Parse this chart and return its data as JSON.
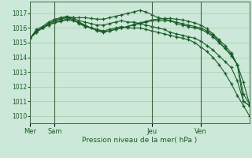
{
  "bg_color": "#cce8d8",
  "grid_color": "#aaccaa",
  "line_color": "#1a5c28",
  "marker_color": "#1a5c28",
  "xlabel_text": "Pression niveau de la mer( hPa )",
  "ylim": [
    1009.5,
    1017.8
  ],
  "yticks": [
    1010,
    1011,
    1012,
    1013,
    1014,
    1015,
    1016,
    1017
  ],
  "xtick_labels": [
    "Mer",
    "Sam",
    "Jeu",
    "Ven"
  ],
  "xtick_positions": [
    0,
    12,
    60,
    84
  ],
  "total_hours": 108,
  "vlines": [
    0,
    12,
    60,
    84
  ],
  "lines": [
    {
      "x": [
        0,
        3,
        6,
        9,
        12,
        15,
        18,
        21,
        24,
        27,
        30,
        33,
        36,
        39,
        42,
        45,
        48,
        51,
        54,
        57,
        60,
        63,
        66,
        69,
        72,
        75,
        78,
        81,
        84,
        87,
        90,
        93,
        96,
        99,
        102,
        105,
        108
      ],
      "y": [
        1015.3,
        1015.8,
        1016.0,
        1016.3,
        1016.5,
        1016.6,
        1016.7,
        1016.6,
        1016.3,
        1016.1,
        1016.0,
        1015.9,
        1015.8,
        1015.9,
        1016.0,
        1016.1,
        1016.0,
        1016.0,
        1016.0,
        1015.9,
        1015.8,
        1015.7,
        1015.6,
        1015.5,
        1015.4,
        1015.3,
        1015.2,
        1015.0,
        1014.7,
        1014.4,
        1014.0,
        1013.5,
        1012.9,
        1012.2,
        1011.4,
        1010.7,
        1010.0
      ]
    },
    {
      "x": [
        0,
        3,
        6,
        9,
        12,
        15,
        18,
        21,
        24,
        27,
        30,
        33,
        36,
        39,
        42,
        45,
        48,
        51,
        54,
        57,
        60,
        63,
        66,
        69,
        72,
        75,
        78,
        81,
        84,
        87,
        90,
        93,
        96,
        99,
        102,
        105,
        108
      ],
      "y": [
        1015.3,
        1015.9,
        1016.1,
        1016.4,
        1016.6,
        1016.7,
        1016.8,
        1016.7,
        1016.5,
        1016.4,
        1016.3,
        1016.2,
        1016.2,
        1016.3,
        1016.4,
        1016.5,
        1016.4,
        1016.4,
        1016.3,
        1016.2,
        1016.1,
        1016.0,
        1015.9,
        1015.7,
        1015.6,
        1015.5,
        1015.4,
        1015.3,
        1015.1,
        1014.8,
        1014.5,
        1014.1,
        1013.7,
        1013.3,
        1012.4,
        1011.0,
        1010.7
      ]
    },
    {
      "x": [
        0,
        3,
        6,
        9,
        12,
        15,
        18,
        21,
        24,
        27,
        30,
        33,
        36,
        39,
        42,
        45,
        48,
        51,
        54,
        57,
        60,
        63,
        66,
        69,
        72,
        75,
        78,
        81,
        84,
        87,
        90,
        93,
        96,
        99,
        102,
        105,
        108
      ],
      "y": [
        1015.3,
        1015.8,
        1016.0,
        1016.3,
        1016.5,
        1016.65,
        1016.7,
        1016.7,
        1016.7,
        1016.7,
        1016.65,
        1016.6,
        1016.6,
        1016.7,
        1016.8,
        1016.9,
        1017.0,
        1017.1,
        1017.2,
        1017.1,
        1016.9,
        1016.7,
        1016.6,
        1016.5,
        1016.3,
        1016.2,
        1016.1,
        1016.0,
        1015.9,
        1015.7,
        1015.4,
        1015.0,
        1014.6,
        1014.2,
        1013.5,
        1012.3,
        1010.8
      ]
    },
    {
      "x": [
        0,
        3,
        6,
        9,
        12,
        15,
        18,
        21,
        24,
        27,
        30,
        33,
        36,
        39,
        42,
        45,
        48,
        51,
        54,
        57,
        60,
        63,
        66,
        69,
        72,
        75,
        78,
        81,
        84,
        87,
        90,
        93,
        96,
        99,
        102,
        105,
        108
      ],
      "y": [
        1015.3,
        1015.7,
        1016.0,
        1016.2,
        1016.4,
        1016.5,
        1016.6,
        1016.55,
        1016.4,
        1016.2,
        1016.0,
        1015.8,
        1015.7,
        1015.8,
        1015.9,
        1016.0,
        1016.1,
        1016.2,
        1016.3,
        1016.4,
        1016.5,
        1016.5,
        1016.5,
        1016.5,
        1016.4,
        1016.3,
        1016.2,
        1016.1,
        1016.0,
        1015.8,
        1015.5,
        1015.1,
        1014.6,
        1014.1,
        1013.5,
        1011.5,
        1010.8
      ]
    },
    {
      "x": [
        0,
        3,
        6,
        9,
        12,
        15,
        18,
        21,
        24,
        27,
        30,
        33,
        36,
        39,
        42,
        45,
        48,
        51,
        54,
        57,
        60,
        63,
        66,
        69,
        72,
        75,
        78,
        81,
        84,
        87,
        90,
        93,
        96,
        99,
        102,
        105,
        108
      ],
      "y": [
        1015.3,
        1015.7,
        1016.0,
        1016.2,
        1016.35,
        1016.45,
        1016.55,
        1016.5,
        1016.35,
        1016.15,
        1016.0,
        1015.85,
        1015.75,
        1015.8,
        1015.9,
        1016.0,
        1016.1,
        1016.25,
        1016.35,
        1016.45,
        1016.55,
        1016.6,
        1016.65,
        1016.65,
        1016.6,
        1016.55,
        1016.45,
        1016.35,
        1016.2,
        1015.95,
        1015.6,
        1015.2,
        1014.8,
        1014.3,
        1013.5,
        1011.0,
        1010.7
      ]
    }
  ]
}
